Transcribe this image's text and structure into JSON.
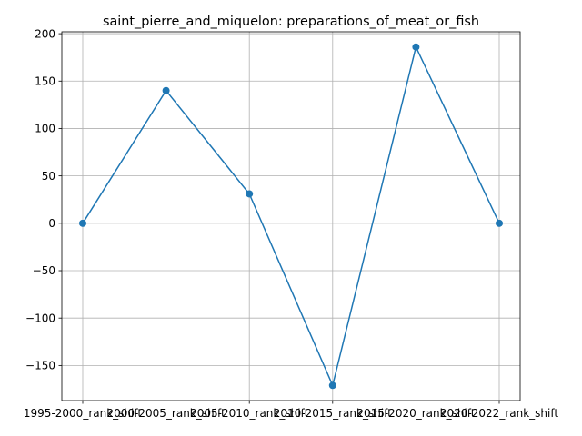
{
  "chart_data": {
    "type": "line",
    "title": "saint_pierre_and_miquelon: preparations_of_meat_or_fish",
    "xlabel": "",
    "ylabel": "",
    "categories": [
      "1995-2000_rank_shift",
      "2000-2005_rank_shift",
      "2005-2010_rank_shift",
      "2010-2015_rank_shift",
      "2015-2020_rank_shift",
      "2020-2022_rank_shift"
    ],
    "series": [
      {
        "values": [
          0,
          140,
          31,
          -171,
          186,
          0
        ]
      }
    ],
    "ylim": [
      -187,
      202
    ],
    "yticks": [
      -150,
      -100,
      -50,
      0,
      50,
      100,
      150,
      200
    ],
    "grid": true,
    "line_color": "#1f77b4"
  }
}
